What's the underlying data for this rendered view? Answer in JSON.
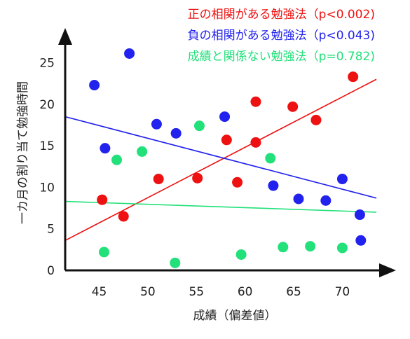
{
  "chart_data": {
    "type": "scatter",
    "xlabel": "成績（偏差値）",
    "ylabel": "一カ月の割り当て勉強時間",
    "xlim": [
      41.5,
      73.5
    ],
    "ylim": [
      0,
      28.5
    ],
    "xticks": [
      45,
      50,
      55,
      60,
      65,
      70
    ],
    "yticks": [
      0,
      5,
      10,
      15,
      20,
      25
    ],
    "legend_position": "top-right",
    "series": [
      {
        "name": "正の相関がある勉強法（p<0.002)",
        "color": "#ee1111",
        "points": [
          [
            45.3,
            8.5
          ],
          [
            47.5,
            6.5
          ],
          [
            51.1,
            11.0
          ],
          [
            55.1,
            11.1
          ],
          [
            58.1,
            15.7
          ],
          [
            59.2,
            10.6
          ],
          [
            61.1,
            20.3
          ],
          [
            61.1,
            15.4
          ],
          [
            64.9,
            19.7
          ],
          [
            67.3,
            18.1
          ],
          [
            71.1,
            23.3
          ]
        ],
        "trend": [
          [
            41.5,
            3.6
          ],
          [
            73.5,
            23.0
          ]
        ]
      },
      {
        "name": "負の相関がある勉強法（p<0.043)",
        "color": "#2222ee",
        "points": [
          [
            44.5,
            22.3
          ],
          [
            45.6,
            14.7
          ],
          [
            48.1,
            26.1
          ],
          [
            50.9,
            17.6
          ],
          [
            52.9,
            16.5
          ],
          [
            57.9,
            18.5
          ],
          [
            62.9,
            10.2
          ],
          [
            65.5,
            8.6
          ],
          [
            68.3,
            8.4
          ],
          [
            70.0,
            11.0
          ],
          [
            71.8,
            6.7
          ],
          [
            71.9,
            3.6
          ]
        ],
        "trend": [
          [
            41.5,
            18.5
          ],
          [
            73.5,
            8.7
          ]
        ]
      },
      {
        "name": "成績と関係ない勉強法（p=0.782)",
        "color": "#22e07a",
        "points": [
          [
            45.5,
            2.2
          ],
          [
            46.8,
            13.3
          ],
          [
            49.4,
            14.3
          ],
          [
            52.8,
            0.9
          ],
          [
            55.3,
            17.4
          ],
          [
            59.6,
            1.9
          ],
          [
            62.6,
            13.5
          ],
          [
            63.9,
            2.8
          ],
          [
            66.7,
            2.9
          ],
          [
            70.0,
            2.7
          ]
        ],
        "trend": [
          [
            41.5,
            8.3
          ],
          [
            73.5,
            7.0
          ]
        ]
      }
    ]
  }
}
